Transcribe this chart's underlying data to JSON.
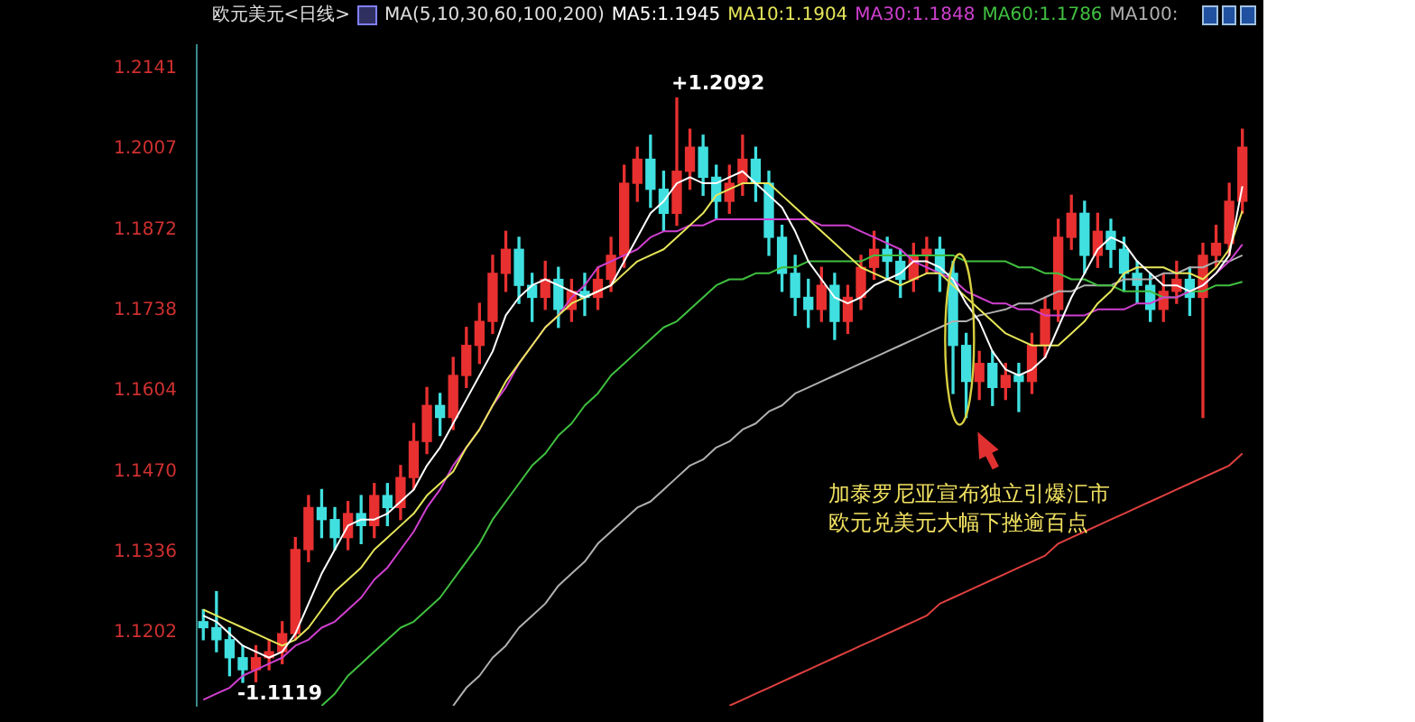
{
  "chart_data": {
    "type": "candlestick",
    "title": "欧元美元<日线>",
    "legend_title": "MA(5,10,30,60,100,200)",
    "legend": "top",
    "tick_labels": "y",
    "line_style": "solid",
    "categories": [
      null,
      null,
      null,
      null,
      null,
      null,
      null,
      null,
      null,
      null,
      null,
      null,
      null,
      null,
      null,
      null,
      null,
      null,
      null,
      null,
      null,
      null,
      null,
      null,
      null,
      null,
      null,
      null,
      null,
      null,
      null,
      null,
      null,
      null,
      null,
      null,
      null,
      null,
      null,
      null,
      null,
      null,
      null,
      null,
      null,
      null,
      null,
      null,
      null,
      null,
      null,
      null,
      null,
      null,
      null,
      null,
      null,
      null,
      null,
      null,
      null,
      null,
      null,
      null,
      null,
      null,
      null,
      null,
      null,
      null,
      null,
      null,
      null,
      null,
      null,
      null,
      null,
      null,
      null,
      null
    ],
    "ohlc": [
      [
        1.122,
        1.124,
        1.119,
        1.121
      ],
      [
        1.121,
        1.127,
        1.117,
        1.119
      ],
      [
        1.119,
        1.121,
        1.113,
        1.116
      ],
      [
        1.116,
        1.118,
        1.1119,
        1.114
      ],
      [
        1.114,
        1.118,
        1.112,
        1.116
      ],
      [
        1.116,
        1.119,
        1.114,
        1.117
      ],
      [
        1.117,
        1.122,
        1.115,
        1.12
      ],
      [
        1.12,
        1.136,
        1.119,
        1.134
      ],
      [
        1.134,
        1.143,
        1.132,
        1.141
      ],
      [
        1.141,
        1.144,
        1.136,
        1.139
      ],
      [
        1.139,
        1.141,
        1.134,
        1.136
      ],
      [
        1.136,
        1.142,
        1.134,
        1.14
      ],
      [
        1.14,
        1.143,
        1.135,
        1.138
      ],
      [
        1.138,
        1.145,
        1.136,
        1.143
      ],
      [
        1.143,
        1.145,
        1.138,
        1.141
      ],
      [
        1.141,
        1.148,
        1.139,
        1.146
      ],
      [
        1.146,
        1.155,
        1.144,
        1.152
      ],
      [
        1.152,
        1.161,
        1.15,
        1.158
      ],
      [
        1.158,
        1.16,
        1.153,
        1.156
      ],
      [
        1.156,
        1.166,
        1.154,
        1.163
      ],
      [
        1.163,
        1.171,
        1.161,
        1.168
      ],
      [
        1.168,
        1.175,
        1.165,
        1.172
      ],
      [
        1.172,
        1.183,
        1.17,
        1.18
      ],
      [
        1.18,
        1.187,
        1.177,
        1.184
      ],
      [
        1.184,
        1.186,
        1.175,
        1.178
      ],
      [
        1.178,
        1.18,
        1.172,
        1.176
      ],
      [
        1.176,
        1.182,
        1.174,
        1.179
      ],
      [
        1.179,
        1.181,
        1.171,
        1.174
      ],
      [
        1.174,
        1.179,
        1.172,
        1.177
      ],
      [
        1.177,
        1.18,
        1.173,
        1.176
      ],
      [
        1.176,
        1.181,
        1.174,
        1.179
      ],
      [
        1.179,
        1.186,
        1.177,
        1.183
      ],
      [
        1.183,
        1.198,
        1.181,
        1.195
      ],
      [
        1.195,
        1.201,
        1.192,
        1.199
      ],
      [
        1.199,
        1.203,
        1.191,
        1.194
      ],
      [
        1.194,
        1.197,
        1.187,
        1.19
      ],
      [
        1.19,
        1.2092,
        1.188,
        1.197
      ],
      [
        1.197,
        1.204,
        1.194,
        1.201
      ],
      [
        1.201,
        1.203,
        1.193,
        1.196
      ],
      [
        1.196,
        1.198,
        1.189,
        1.192
      ],
      [
        1.192,
        1.198,
        1.19,
        1.195
      ],
      [
        1.195,
        1.203,
        1.193,
        1.199
      ],
      [
        1.199,
        1.201,
        1.192,
        1.195
      ],
      [
        1.195,
        1.197,
        1.183,
        1.186
      ],
      [
        1.186,
        1.188,
        1.177,
        1.18
      ],
      [
        1.18,
        1.183,
        1.173,
        1.176
      ],
      [
        1.176,
        1.179,
        1.171,
        1.174
      ],
      [
        1.174,
        1.181,
        1.172,
        1.178
      ],
      [
        1.178,
        1.18,
        1.169,
        1.172
      ],
      [
        1.172,
        1.178,
        1.17,
        1.176
      ],
      [
        1.176,
        1.183,
        1.174,
        1.181
      ],
      [
        1.181,
        1.187,
        1.179,
        1.184
      ],
      [
        1.184,
        1.186,
        1.179,
        1.182
      ],
      [
        1.182,
        1.184,
        1.176,
        1.179
      ],
      [
        1.179,
        1.185,
        1.177,
        1.183
      ],
      [
        1.183,
        1.186,
        1.18,
        1.184
      ],
      [
        1.184,
        1.186,
        1.177,
        1.18
      ],
      [
        1.18,
        1.182,
        1.16,
        1.168
      ],
      [
        1.168,
        1.17,
        1.156,
        1.162
      ],
      [
        1.162,
        1.167,
        1.159,
        1.165
      ],
      [
        1.165,
        1.167,
        1.158,
        1.161
      ],
      [
        1.161,
        1.165,
        1.159,
        1.163
      ],
      [
        1.163,
        1.165,
        1.157,
        1.162
      ],
      [
        1.162,
        1.17,
        1.16,
        1.168
      ],
      [
        1.168,
        1.176,
        1.166,
        1.174
      ],
      [
        1.174,
        1.189,
        1.172,
        1.186
      ],
      [
        1.186,
        1.193,
        1.184,
        1.19
      ],
      [
        1.19,
        1.192,
        1.18,
        1.183
      ],
      [
        1.183,
        1.19,
        1.181,
        1.187
      ],
      [
        1.187,
        1.189,
        1.181,
        1.184
      ],
      [
        1.184,
        1.186,
        1.177,
        1.18
      ],
      [
        1.18,
        1.182,
        1.175,
        1.178
      ],
      [
        1.178,
        1.18,
        1.172,
        1.174
      ],
      [
        1.174,
        1.18,
        1.172,
        1.177
      ],
      [
        1.177,
        1.182,
        1.175,
        1.179
      ],
      [
        1.179,
        1.181,
        1.173,
        1.176
      ],
      [
        1.176,
        1.185,
        1.156,
        1.183
      ],
      [
        1.183,
        1.188,
        1.181,
        1.185
      ],
      [
        1.185,
        1.195,
        1.183,
        1.192
      ],
      [
        1.192,
        1.204,
        1.19,
        1.201
      ]
    ],
    "colors": [
      "#40e0e0",
      "#40e0e0",
      "#40e0e0",
      "#40e0e0",
      "#e83030",
      "#e83030",
      "#e83030",
      "#e83030",
      "#e83030",
      "#40e0e0",
      "#40e0e0",
      "#e83030",
      "#40e0e0",
      "#e83030",
      "#40e0e0",
      "#e83030",
      "#e83030",
      "#e83030",
      "#40e0e0",
      "#e83030",
      "#e83030",
      "#e83030",
      "#e83030",
      "#e83030",
      "#40e0e0",
      "#40e0e0",
      "#e83030",
      "#40e0e0",
      "#e83030",
      "#40e0e0",
      "#e83030",
      "#e83030",
      "#e83030",
      "#e83030",
      "#40e0e0",
      "#40e0e0",
      "#e83030",
      "#e83030",
      "#40e0e0",
      "#40e0e0",
      "#e83030",
      "#e83030",
      "#40e0e0",
      "#40e0e0",
      "#40e0e0",
      "#40e0e0",
      "#40e0e0",
      "#e83030",
      "#40e0e0",
      "#e83030",
      "#e83030",
      "#e83030",
      "#40e0e0",
      "#40e0e0",
      "#e83030",
      "#e83030",
      "#40e0e0",
      "#40e0e0",
      "#40e0e0",
      "#e83030",
      "#40e0e0",
      "#e83030",
      "#40e0e0",
      "#e83030",
      "#e83030",
      "#e83030",
      "#e83030",
      "#40e0e0",
      "#e83030",
      "#40e0e0",
      "#40e0e0",
      "#40e0e0",
      "#40e0e0",
      "#e83030",
      "#e83030",
      "#40e0e0",
      "#e83030",
      "#e83030",
      "#e83030",
      "#e83030"
    ],
    "series": [
      {
        "name": "MA5:1.1945",
        "type": "line",
        "color": "#ffffff",
        "values": [
          1.123,
          1.122,
          1.12,
          1.118,
          1.117,
          1.116,
          1.117,
          1.12,
          1.125,
          1.13,
          1.134,
          1.138,
          1.139,
          1.139,
          1.14,
          1.142,
          1.144,
          1.148,
          1.151,
          1.155,
          1.159,
          1.163,
          1.167,
          1.173,
          1.176,
          1.178,
          1.179,
          1.178,
          1.177,
          1.176,
          1.177,
          1.178,
          1.182,
          1.186,
          1.19,
          1.192,
          1.195,
          1.196,
          1.195,
          1.195,
          1.196,
          1.197,
          1.195,
          1.193,
          1.191,
          1.187,
          1.182,
          1.179,
          1.176,
          1.175,
          1.176,
          1.178,
          1.179,
          1.18,
          1.182,
          1.182,
          1.181,
          1.179,
          1.175,
          1.172,
          1.167,
          1.164,
          1.163,
          1.164,
          1.166,
          1.171,
          1.176,
          1.18,
          1.184,
          1.186,
          1.185,
          1.182,
          1.18,
          1.178,
          1.178,
          1.177,
          1.178,
          1.18,
          1.183,
          1.1945
        ]
      },
      {
        "name": "MA10:1.1904",
        "type": "line",
        "color": "#e6e65a",
        "values": [
          1.124,
          1.123,
          1.122,
          1.121,
          1.12,
          1.119,
          1.118,
          1.119,
          1.121,
          1.124,
          1.127,
          1.129,
          1.131,
          1.134,
          1.136,
          1.138,
          1.14,
          1.143,
          1.145,
          1.147,
          1.151,
          1.154,
          1.158,
          1.162,
          1.165,
          1.168,
          1.171,
          1.173,
          1.175,
          1.176,
          1.177,
          1.178,
          1.18,
          1.182,
          1.183,
          1.184,
          1.186,
          1.188,
          1.19,
          1.193,
          1.194,
          1.195,
          1.195,
          1.195,
          1.193,
          1.191,
          1.189,
          1.187,
          1.185,
          1.183,
          1.181,
          1.18,
          1.179,
          1.178,
          1.179,
          1.18,
          1.18,
          1.178,
          1.176,
          1.174,
          1.172,
          1.17,
          1.169,
          1.168,
          1.168,
          1.168,
          1.17,
          1.172,
          1.175,
          1.177,
          1.18,
          1.181,
          1.181,
          1.181,
          1.18,
          1.18,
          1.179,
          1.181,
          1.184,
          1.1904
        ]
      },
      {
        "name": "MA30:1.1848",
        "type": "line",
        "color": "#d040d0",
        "values": [
          1.109,
          1.11,
          1.111,
          1.113,
          1.114,
          1.115,
          1.116,
          1.118,
          1.119,
          1.121,
          1.122,
          1.124,
          1.126,
          1.129,
          1.131,
          1.134,
          1.137,
          1.141,
          1.144,
          1.148,
          1.151,
          1.154,
          1.158,
          1.161,
          1.165,
          1.168,
          1.171,
          1.173,
          1.176,
          1.178,
          1.181,
          1.182,
          1.183,
          1.184,
          1.186,
          1.187,
          1.187,
          1.188,
          1.188,
          1.189,
          1.189,
          1.189,
          1.189,
          1.189,
          1.189,
          1.189,
          1.189,
          1.188,
          1.188,
          1.188,
          1.187,
          1.186,
          1.185,
          1.184,
          1.182,
          1.181,
          1.18,
          1.179,
          1.177,
          1.176,
          1.175,
          1.175,
          1.174,
          1.174,
          1.173,
          1.173,
          1.173,
          1.173,
          1.174,
          1.174,
          1.174,
          1.175,
          1.175,
          1.176,
          1.176,
          1.177,
          1.178,
          1.18,
          1.182,
          1.1848
        ]
      },
      {
        "name": "MA60:1.1786",
        "type": "line",
        "color": "#40c040",
        "values": [
          null,
          null,
          null,
          null,
          null,
          null,
          null,
          null,
          null,
          1.108,
          1.11,
          1.113,
          1.115,
          1.117,
          1.119,
          1.121,
          1.122,
          1.124,
          1.126,
          1.129,
          1.132,
          1.135,
          1.139,
          1.142,
          1.145,
          1.148,
          1.15,
          1.153,
          1.155,
          1.158,
          1.16,
          1.163,
          1.165,
          1.167,
          1.169,
          1.171,
          1.172,
          1.174,
          1.176,
          1.178,
          1.179,
          1.179,
          1.18,
          1.18,
          1.181,
          1.181,
          1.182,
          1.182,
          1.182,
          1.182,
          1.182,
          1.183,
          1.183,
          1.183,
          1.183,
          1.183,
          1.183,
          1.183,
          1.182,
          1.182,
          1.182,
          1.182,
          1.181,
          1.181,
          1.18,
          1.18,
          1.179,
          1.179,
          1.178,
          1.178,
          1.177,
          1.177,
          1.177,
          1.176,
          1.176,
          1.177,
          1.177,
          1.178,
          1.178,
          1.1786
        ]
      },
      {
        "name": "MA100:",
        "type": "line",
        "color": "#b0b0b0",
        "values": [
          null,
          null,
          null,
          null,
          null,
          null,
          null,
          null,
          null,
          null,
          null,
          null,
          null,
          null,
          null,
          null,
          null,
          null,
          null,
          1.108,
          1.111,
          1.113,
          1.116,
          1.118,
          1.121,
          1.123,
          1.125,
          1.128,
          1.13,
          1.132,
          1.135,
          1.137,
          1.139,
          1.141,
          1.142,
          1.144,
          1.146,
          1.148,
          1.149,
          1.151,
          1.152,
          1.154,
          1.155,
          1.157,
          1.158,
          1.16,
          1.161,
          1.162,
          1.163,
          1.164,
          1.165,
          1.166,
          1.167,
          1.168,
          1.169,
          1.17,
          1.171,
          1.172,
          1.172,
          1.173,
          1.1735,
          1.174,
          1.175,
          1.175,
          1.176,
          1.177,
          1.177,
          1.178,
          1.178,
          1.178,
          1.179,
          1.179,
          1.179,
          1.18,
          1.18,
          1.181,
          1.181,
          1.182,
          1.182,
          1.183
        ]
      },
      {
        "type": "line",
        "color": "#e04040",
        "values": [
          null,
          null,
          null,
          null,
          null,
          null,
          null,
          null,
          null,
          null,
          null,
          null,
          null,
          null,
          null,
          null,
          null,
          null,
          null,
          null,
          null,
          null,
          null,
          null,
          null,
          null,
          null,
          null,
          null,
          null,
          null,
          null,
          null,
          null,
          null,
          null,
          null,
          null,
          null,
          null,
          1.108,
          1.109,
          1.11,
          1.111,
          1.112,
          1.113,
          1.114,
          1.115,
          1.116,
          1.117,
          1.118,
          1.119,
          1.12,
          1.121,
          1.122,
          1.123,
          1.125,
          1.126,
          1.127,
          1.128,
          1.129,
          1.13,
          1.131,
          1.132,
          1.133,
          1.135,
          1.136,
          1.137,
          1.138,
          1.139,
          1.14,
          1.141,
          1.142,
          1.143,
          1.144,
          1.145,
          1.146,
          1.147,
          1.148,
          1.15
        ]
      }
    ],
    "ylim": [
      1.108,
      1.218
    ],
    "yticks": [
      1.1202,
      1.1336,
      {
        "value": 1.147,
        "label": "1.1470"
      },
      1.1604,
      1.1738,
      1.1872,
      1.2007,
      1.2141
    ],
    "annotations": [
      "+1.2092",
      "-1.1119",
      "加泰罗尼亚宣布独立引爆汇市",
      "欧元兑美元大幅下挫逾百点"
    ]
  }
}
